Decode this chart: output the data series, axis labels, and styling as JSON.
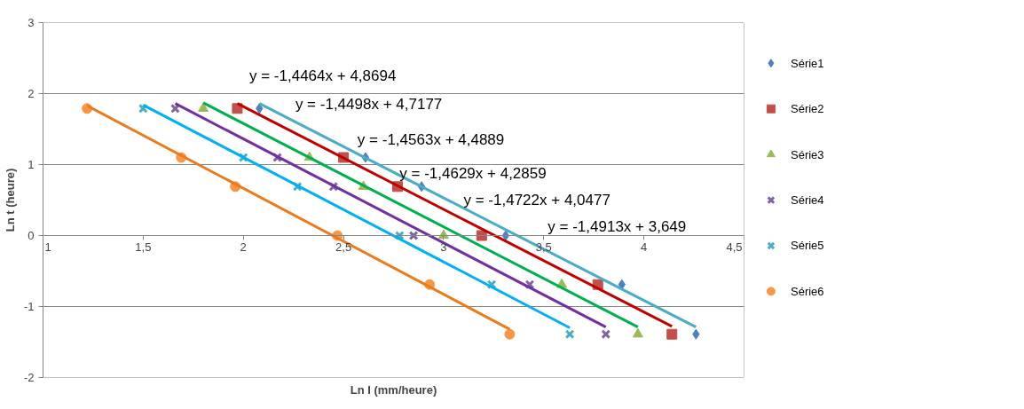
{
  "chart_data": {
    "type": "scatter",
    "xlabel": "Ln I (mm/heure)",
    "ylabel": "Ln t (heure)",
    "xlim": [
      1,
      4.5
    ],
    "xticks": [
      1,
      {
        "value": 1.5,
        "label": "1,5"
      },
      2,
      {
        "value": 2.5,
        "label": "2,5"
      },
      3,
      {
        "value": 3.5,
        "label": "3,5"
      },
      4,
      {
        "value": 4.5,
        "label": "4,5"
      }
    ],
    "ylim": [
      -2,
      3
    ],
    "yticks": [
      -2,
      -1,
      0,
      1,
      2,
      3
    ],
    "grid": "y",
    "legend": "right",
    "series": [
      {
        "name": "Série1",
        "color": "#4f81bd",
        "marker": "diamond",
        "x": [
          2.08,
          2.61,
          2.89,
          3.31,
          3.89,
          4.26
        ],
        "values": [
          1.79,
          1.1,
          0.69,
          0,
          -0.69,
          -1.39
        ]
      },
      {
        "name": "Série2",
        "color": "#c0504d",
        "marker": "square",
        "x": [
          1.97,
          2.5,
          2.77,
          3.19,
          3.77,
          4.14
        ],
        "values": [
          1.79,
          1.1,
          0.69,
          0,
          -0.69,
          -1.39
        ]
      },
      {
        "name": "Série3",
        "color": "#9bbb59",
        "marker": "triangle",
        "x": [
          1.8,
          2.33,
          2.6,
          3.0,
          3.59,
          3.97
        ],
        "values": [
          1.79,
          1.1,
          0.69,
          0,
          -0.69,
          -1.39
        ]
      },
      {
        "name": "Série4",
        "color": "#8064a2",
        "marker": "cross",
        "x": [
          1.66,
          2.17,
          2.45,
          2.85,
          3.43,
          3.81
        ],
        "values": [
          1.79,
          1.1,
          0.69,
          0,
          -0.69,
          -1.39
        ]
      },
      {
        "name": "Série5",
        "color": "#4bacc6",
        "marker": "cross",
        "x": [
          1.5,
          2.0,
          2.27,
          2.78,
          3.24,
          3.63
        ],
        "values": [
          1.79,
          1.1,
          0.69,
          0,
          -0.69,
          -1.39
        ]
      },
      {
        "name": "Série6",
        "color": "#f79646",
        "marker": "circle",
        "x": [
          1.22,
          1.69,
          1.96,
          2.47,
          2.93,
          3.33
        ],
        "values": [
          1.79,
          1.1,
          0.69,
          0,
          -0.69,
          -1.39
        ]
      },
      {
        "type": "line",
        "color": "#4bacc6",
        "x": [
          2.08,
          4.26
        ],
        "values": [
          1.86,
          -1.29
        ]
      },
      {
        "type": "line",
        "color": "#c00000",
        "x": [
          1.97,
          4.14
        ],
        "values": [
          1.86,
          -1.28
        ]
      },
      {
        "type": "line",
        "color": "#00b050",
        "x": [
          1.8,
          3.97
        ],
        "values": [
          1.87,
          -1.29
        ]
      },
      {
        "type": "line",
        "color": "#7030a0",
        "x": [
          1.66,
          3.81
        ],
        "values": [
          1.86,
          -1.29
        ]
      },
      {
        "type": "line",
        "color": "#00b0f0",
        "x": [
          1.5,
          3.63
        ],
        "values": [
          1.84,
          -1.3
        ]
      },
      {
        "type": "line",
        "color": "#e97d1e",
        "x": [
          1.22,
          3.33
        ],
        "values": [
          1.83,
          -1.32
        ]
      }
    ],
    "annotations": [
      "y = -1,4464x + 4,8694",
      "y = -1,4498x + 4,7177",
      "y = -1,4563x + 4,4889",
      "y = -1,4629x + 4,2859",
      "y = -1,4722x + 4,0477",
      "y = -1,4913x + 3,649"
    ]
  }
}
